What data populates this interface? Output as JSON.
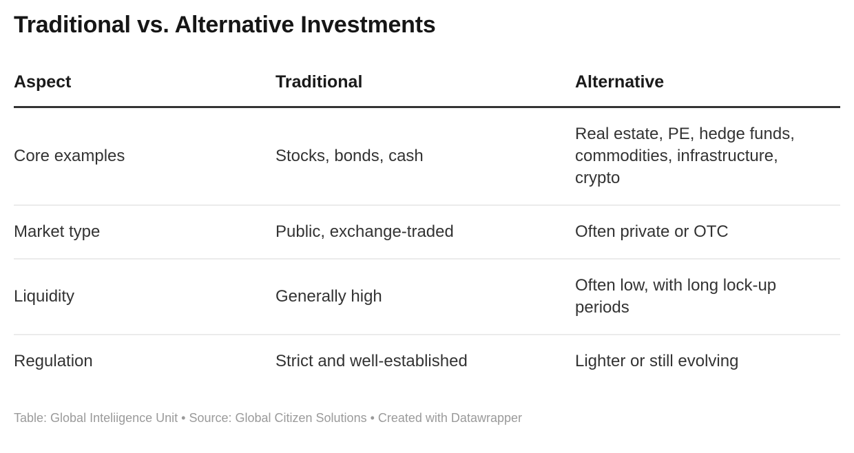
{
  "chart_data": {
    "type": "table",
    "title": "Traditional vs. Alternative Investments",
    "columns": [
      "Aspect",
      "Traditional",
      "Alternative"
    ],
    "rows": [
      [
        "Core examples",
        "Stocks, bonds, cash",
        "Real estate, PE, hedge funds, commodities, infrastructure, crypto"
      ],
      [
        "Market type",
        "Public, exchange-traded",
        "Often private or OTC"
      ],
      [
        "Liquidity",
        "Generally high",
        "Often low, with long lock-up periods"
      ],
      [
        "Regulation",
        "Strict and well-established",
        "Lighter or still evolving"
      ]
    ],
    "legend_position": "none",
    "grid": "horizontal-row-dividers"
  },
  "footer": {
    "text": "Table: Global Inteliigence Unit • Source: Global Citizen Solutions • Created with Datawrapper"
  },
  "colors": {
    "background": "#ffffff",
    "title_text": "#161616",
    "header_text": "#1a1a1a",
    "body_text": "#333333",
    "footer_text": "#9a9a9a",
    "header_rule": "#333333",
    "row_divider": "#ebebeb"
  }
}
